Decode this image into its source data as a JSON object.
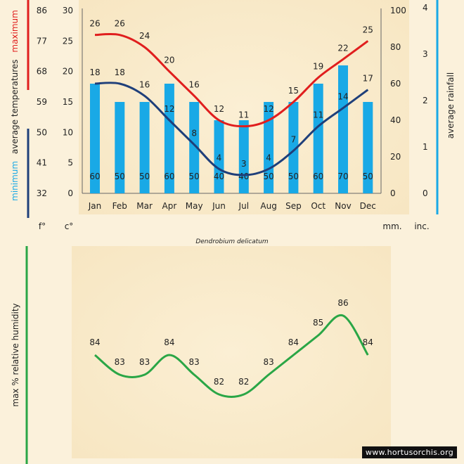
{
  "chart_data": [
    {
      "type": "bar+line",
      "title": "Dendrobium delicatum",
      "categories": [
        "Jan",
        "Feb",
        "Mar",
        "Apr",
        "May",
        "Jun",
        "Jul",
        "Aug",
        "Sep",
        "Oct",
        "Nov",
        "Dec"
      ],
      "series": [
        {
          "name": "maximum",
          "axis": "temp_c",
          "color": "#e01e1e",
          "values": [
            26,
            26,
            24,
            20,
            16,
            12,
            11,
            12,
            15,
            19,
            22,
            25
          ]
        },
        {
          "name": "minimum",
          "axis": "temp_c",
          "color": "#1f3f7a",
          "values": [
            18,
            18,
            16,
            12,
            8,
            4,
            3,
            4,
            7,
            11,
            14,
            17
          ]
        },
        {
          "name": "rainfall",
          "axis": "rain_mm",
          "type": "bar",
          "color": "#19a9e6",
          "values": [
            60,
            50,
            50,
            60,
            50,
            40,
            40,
            50,
            50,
            60,
            70,
            50
          ]
        }
      ],
      "axes": {
        "temp_c": {
          "ylim": [
            0,
            30
          ],
          "ticks": [
            0,
            5,
            10,
            15,
            20,
            25,
            30
          ],
          "unit": "c°"
        },
        "temp_f": {
          "ticks": [
            32,
            41,
            50,
            59,
            68,
            77,
            86
          ],
          "unit": "f°"
        },
        "rain_mm": {
          "ylim": [
            0,
            100
          ],
          "ticks": [
            0,
            20,
            40,
            60,
            80,
            100
          ],
          "unit": "mm."
        },
        "rain_in": {
          "ticks": [
            0,
            1,
            2,
            3,
            4
          ],
          "unit": "inc."
        }
      },
      "ylabel_left": {
        "maximum": "maximum",
        "average": "average temperatures",
        "minimum": "minimum"
      },
      "ylabel_right": "average rainfall"
    },
    {
      "type": "line",
      "ylabel": "max % relative humidity",
      "series": [
        {
          "name": "humidity",
          "color": "#2aa646",
          "values": [
            84,
            83,
            83,
            84,
            83,
            82,
            82,
            83,
            84,
            85,
            86,
            84
          ]
        }
      ]
    }
  ],
  "footer": "www.hortusorchis.org"
}
